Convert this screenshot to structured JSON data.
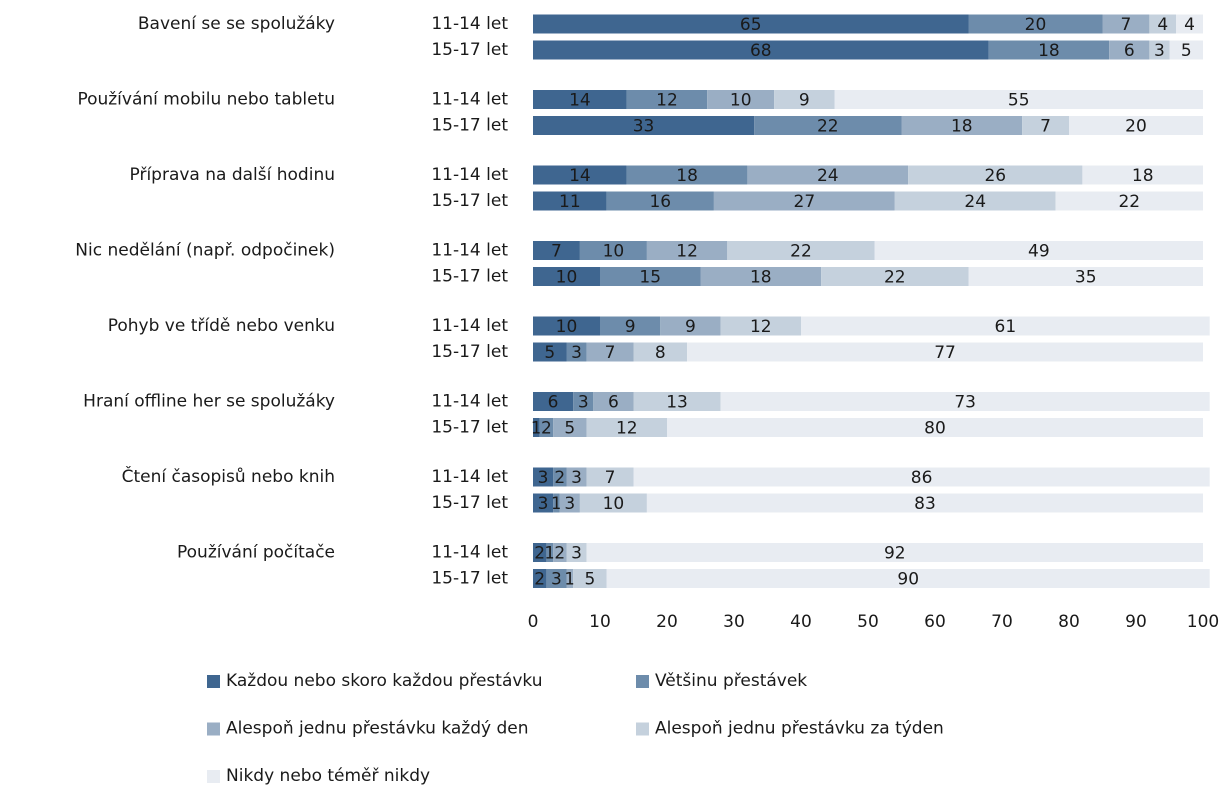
{
  "chart_data": {
    "type": "stacked-barh",
    "groups": [
      "Bavení se se spolužáky",
      "Používání mobilu nebo tabletu",
      "Příprava na další hodinu",
      "Nic nedělání (např. odpočinek)",
      "Pohyb ve třídě nebo venku",
      "Hraní offline her se spolužáky",
      "Čtení časopisů nebo knih",
      "Používání počítače"
    ],
    "categories": [
      "11-14 let",
      "15-17 let",
      "11-14 let",
      "15-17 let",
      "11-14 let",
      "15-17 let",
      "11-14 let",
      "15-17 let",
      "11-14 let",
      "15-17 let",
      "11-14 let",
      "15-17 let",
      "11-14 let",
      "15-17 let",
      "11-14 let",
      "15-17 let"
    ],
    "series": [
      {
        "name": "Každou nebo skoro každou přestávku",
        "color": "#3f6690",
        "values": [
          65,
          68,
          14,
          33,
          14,
          11,
          7,
          10,
          10,
          5,
          6,
          1,
          3,
          3,
          2,
          2
        ]
      },
      {
        "name": "Většinu přestávek",
        "color": "#6d8cab",
        "values": [
          20,
          18,
          12,
          22,
          18,
          16,
          10,
          15,
          9,
          3,
          3,
          2,
          2,
          1,
          1,
          3
        ]
      },
      {
        "name": "Alespoň jednu přestávku každý den",
        "color": "#9aaec4",
        "values": [
          7,
          6,
          10,
          18,
          24,
          27,
          12,
          18,
          9,
          7,
          6,
          5,
          3,
          3,
          2,
          1
        ]
      },
      {
        "name": "Alespoň jednu přestávku za týden",
        "color": "#c5d1dd",
        "values": [
          4,
          3,
          9,
          7,
          26,
          24,
          22,
          22,
          12,
          8,
          13,
          12,
          7,
          10,
          3,
          5
        ]
      },
      {
        "name": "Nikdy nebo téměř nikdy",
        "color": "#e8ecf2",
        "values": [
          4,
          5,
          55,
          20,
          18,
          22,
          49,
          35,
          61,
          77,
          73,
          80,
          86,
          83,
          92,
          90
        ]
      }
    ],
    "xlim": [
      0,
      100
    ],
    "xticks": [
      0,
      10,
      20,
      30,
      40,
      50,
      60,
      70,
      80,
      90,
      100
    ]
  }
}
